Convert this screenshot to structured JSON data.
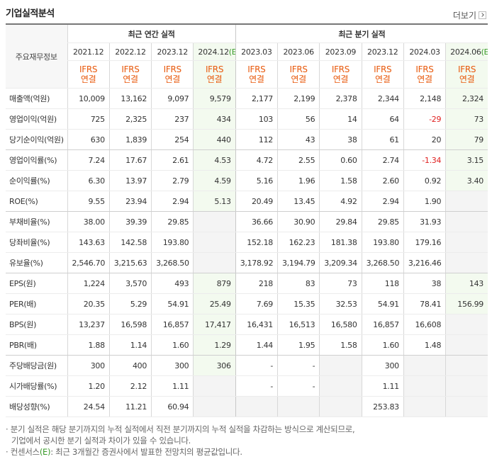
{
  "header": {
    "title": "기업실적분석",
    "more": "더보기"
  },
  "table": {
    "row_header": "주요재무정보",
    "groups": [
      {
        "label": "최근 연간 실적",
        "columns": [
          {
            "date": "2021.12",
            "standard": "IFRS",
            "consolidation": "연결"
          },
          {
            "date": "2022.12",
            "standard": "IFRS",
            "consolidation": "연결"
          },
          {
            "date": "2023.12",
            "standard": "IFRS",
            "consolidation": "연결"
          },
          {
            "date": "2024.12",
            "estimate": "(E)",
            "standard": "IFRS",
            "consolidation": "연결"
          }
        ]
      },
      {
        "label": "최근 분기 실적",
        "columns": [
          {
            "date": "2023.03",
            "standard": "IFRS",
            "consolidation": "연결"
          },
          {
            "date": "2023.06",
            "standard": "IFRS",
            "consolidation": "연결"
          },
          {
            "date": "2023.09",
            "standard": "IFRS",
            "consolidation": "연결"
          },
          {
            "date": "2023.12",
            "standard": "IFRS",
            "consolidation": "연결"
          },
          {
            "date": "2024.03",
            "standard": "IFRS",
            "consolidation": "연결"
          },
          {
            "date": "2024.06",
            "estimate": "(E)",
            "standard": "IFRS",
            "consolidation": "연결"
          }
        ]
      }
    ],
    "rows": [
      {
        "label": "매출액(억원)",
        "values": [
          "10,009",
          "13,162",
          "9,097",
          "9,579",
          "2,177",
          "2,199",
          "2,378",
          "2,344",
          "2,148",
          "2,324"
        ]
      },
      {
        "label": "영업이익(억원)",
        "values": [
          "725",
          "2,325",
          "237",
          "434",
          "103",
          "56",
          "14",
          "64",
          "-29",
          "73"
        ]
      },
      {
        "label": "당기순이익(억원)",
        "values": [
          "630",
          "1,839",
          "254",
          "440",
          "112",
          "43",
          "38",
          "61",
          "20",
          "79"
        ]
      },
      {
        "label": "영업이익률(%)",
        "values": [
          "7.24",
          "17.67",
          "2.61",
          "4.53",
          "4.72",
          "2.55",
          "0.60",
          "2.74",
          "-1.34",
          "3.15"
        ]
      },
      {
        "label": "순이익률(%)",
        "values": [
          "6.30",
          "13.97",
          "2.79",
          "4.59",
          "5.16",
          "1.96",
          "1.58",
          "2.60",
          "0.92",
          "3.40"
        ]
      },
      {
        "label": "ROE(%)",
        "values": [
          "9.55",
          "23.94",
          "2.94",
          "5.13",
          "20.49",
          "13.45",
          "4.92",
          "2.94",
          "1.90",
          null
        ]
      },
      {
        "label": "부채비율(%)",
        "values": [
          "38.00",
          "39.39",
          "29.85",
          null,
          "36.66",
          "30.90",
          "29.84",
          "29.85",
          "31.93",
          null
        ]
      },
      {
        "label": "당좌비율(%)",
        "values": [
          "143.63",
          "142.58",
          "193.80",
          null,
          "152.18",
          "162.23",
          "181.38",
          "193.80",
          "179.16",
          null
        ]
      },
      {
        "label": "유보율(%)",
        "values": [
          "2,546.70",
          "3,215.63",
          "3,268.50",
          null,
          "3,178.92",
          "3,194.79",
          "3,209.34",
          "3,268.50",
          "3,216.46",
          null
        ]
      },
      {
        "label": "EPS(원)",
        "values": [
          "1,224",
          "3,570",
          "493",
          "879",
          "218",
          "83",
          "73",
          "118",
          "38",
          "143"
        ]
      },
      {
        "label": "PER(배)",
        "values": [
          "20.35",
          "5.29",
          "54.91",
          "25.49",
          "7.69",
          "15.35",
          "32.53",
          "54.91",
          "78.41",
          "156.99"
        ]
      },
      {
        "label": "BPS(원)",
        "values": [
          "13,237",
          "16,598",
          "16,857",
          "17,417",
          "16,431",
          "16,513",
          "16,580",
          "16,857",
          "16,608",
          null
        ]
      },
      {
        "label": "PBR(배)",
        "values": [
          "1.88",
          "1.14",
          "1.60",
          "1.29",
          "1.44",
          "1.95",
          "1.58",
          "1.60",
          "1.48",
          null
        ]
      },
      {
        "label": "주당배당금(원)",
        "values": [
          "300",
          "400",
          "300",
          "306",
          "-",
          "-",
          null,
          "300",
          null,
          null
        ]
      },
      {
        "label": "시가배당률(%)",
        "values": [
          "1.20",
          "2.12",
          "1.11",
          null,
          "-",
          "-",
          null,
          "1.11",
          null,
          null
        ]
      },
      {
        "label": "배당성향(%)",
        "values": [
          "24.54",
          "11.21",
          "60.94",
          null,
          null,
          null,
          null,
          "253.83",
          null,
          null
        ]
      }
    ]
  },
  "footnotes": [
    {
      "lines": [
        "분기 실적은 해당 분기까지의 누적 실적에서 직전 분기까지의 누적 실적을 차감하는 방식으로 계산되므로,",
        "기업에서 공시한 분기 실적과 차이가 있을 수 있습니다."
      ]
    },
    {
      "parts": [
        "컨센서스",
        "(E)",
        ": 최근 3개월간 증권사에서 발표한 전망치의 평균값입니다."
      ]
    }
  ]
}
